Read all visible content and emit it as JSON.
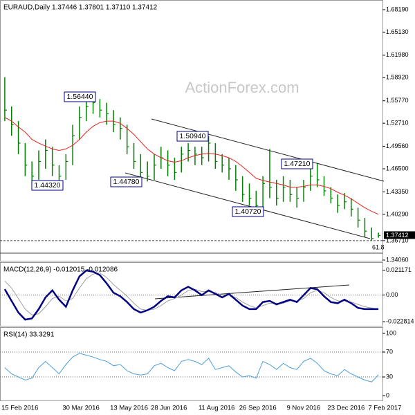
{
  "chart_data": [
    {
      "type": "ohlc",
      "title": "EURAUD,Daily 1.37446 1.37801 1.37110 1.37412",
      "watermark": "ActionForex.com",
      "categories": [
        "15 Feb 2016",
        null,
        null,
        null,
        null,
        null,
        null,
        null,
        null,
        "30 Mar 2016",
        null,
        null,
        null,
        null,
        null,
        null,
        "13 May 2016",
        null,
        null,
        null,
        null,
        null,
        "28 Jun 2016",
        null,
        null,
        null,
        null,
        null,
        null,
        "11 Aug 2016",
        null,
        null,
        null,
        null,
        null,
        "26 Sep 2016",
        null,
        null,
        null,
        null,
        null,
        null,
        "9 Nov 2016",
        null,
        null,
        null,
        null,
        null,
        "23 Dec 2016",
        null,
        null,
        null,
        null,
        null,
        "7 Feb 2017",
        null
      ],
      "series": [
        {
          "name": "high",
          "color": "#008000",
          "values": [
            1.59,
            1.55,
            1.53,
            1.5,
            1.475,
            1.49,
            1.505,
            1.495,
            1.47,
            1.485,
            1.525,
            1.55,
            1.56,
            1.5644,
            1.56,
            1.555,
            1.545,
            1.535,
            1.525,
            1.5,
            1.485,
            1.475,
            1.485,
            1.495,
            1.49,
            1.48,
            1.495,
            1.5,
            1.495,
            1.495,
            1.5094,
            1.5,
            1.485,
            1.48,
            1.47,
            1.455,
            1.445,
            1.435,
            1.455,
            1.492,
            1.45,
            1.455,
            1.45,
            1.44,
            1.45,
            1.465,
            1.4721,
            1.455,
            1.44,
            1.43,
            1.432,
            1.425,
            1.412,
            1.398,
            1.385,
            1.37801
          ]
        },
        {
          "name": "low",
          "color": "#008000",
          "values": [
            1.53,
            1.51,
            1.485,
            1.455,
            1.4432,
            1.45,
            1.465,
            1.455,
            1.445,
            1.45,
            1.47,
            1.505,
            1.53,
            1.54,
            1.535,
            1.525,
            1.515,
            1.505,
            1.485,
            1.465,
            1.45,
            1.4478,
            1.45,
            1.465,
            1.455,
            1.45,
            1.46,
            1.475,
            1.47,
            1.47,
            1.475,
            1.465,
            1.46,
            1.45,
            1.435,
            1.42,
            1.415,
            1.4072,
            1.41,
            1.425,
            1.415,
            1.42,
            1.42,
            1.412,
            1.42,
            1.435,
            1.44,
            1.428,
            1.418,
            1.405,
            1.41,
            1.4,
            1.385,
            1.372,
            1.3671,
            1.3711
          ]
        },
        {
          "name": "close",
          "color": "#008000",
          "values": [
            1.545,
            1.525,
            1.5,
            1.47,
            1.455,
            1.475,
            1.49,
            1.47,
            1.455,
            1.475,
            1.51,
            1.535,
            1.55,
            1.555,
            1.545,
            1.54,
            1.525,
            1.52,
            1.495,
            1.475,
            1.46,
            1.455,
            1.47,
            1.48,
            1.47,
            1.46,
            1.485,
            1.49,
            1.485,
            1.48,
            1.5,
            1.475,
            1.47,
            1.465,
            1.45,
            1.43,
            1.425,
            1.415,
            1.445,
            1.44,
            1.425,
            1.44,
            1.43,
            1.425,
            1.44,
            1.455,
            1.45,
            1.435,
            1.425,
            1.415,
            1.42,
            1.41,
            1.395,
            1.38,
            1.37,
            1.37412
          ]
        },
        {
          "name": "ma",
          "color": "#e8201c",
          "values": [
            1.535,
            1.53,
            1.522,
            1.515,
            1.505,
            1.5,
            1.496,
            1.492,
            1.49,
            1.492,
            1.497,
            1.505,
            1.515,
            1.523,
            1.528,
            1.53,
            1.53,
            1.527,
            1.52,
            1.512,
            1.502,
            1.492,
            1.485,
            1.48,
            1.476,
            1.474,
            1.476,
            1.48,
            1.483,
            1.485,
            1.486,
            1.485,
            1.483,
            1.48,
            1.475,
            1.468,
            1.46,
            1.452,
            1.449,
            1.447,
            1.445,
            1.443,
            1.44,
            1.44,
            1.441,
            1.443,
            1.443,
            1.441,
            1.438,
            1.433,
            1.429,
            1.424,
            1.418,
            1.412,
            1.407,
            1.403
          ]
        }
      ],
      "annotations": [
        "1.56440",
        "1.44320",
        "1.44780",
        "1.50940",
        "1.40720",
        "1.47210"
      ],
      "fib_label": "61.8",
      "ylim": [
        1.3406,
        1.6913
      ],
      "yticks": [
        {
          "value": 1.6819,
          "label": "1.68190"
        },
        {
          "value": 1.6513,
          "label": "1.65130"
        },
        {
          "value": 1.6198,
          "label": "1.61980"
        },
        {
          "value": 1.5892,
          "label": "1.58920"
        },
        {
          "value": 1.5577,
          "label": "1.55770"
        },
        {
          "value": 1.5271,
          "label": "1.52710"
        },
        {
          "value": 1.4956,
          "label": "1.49560"
        },
        {
          "value": 1.465,
          "label": "1.46500"
        },
        {
          "value": 1.4335,
          "label": "1.43350"
        },
        {
          "value": 1.4029,
          "label": "1.40290"
        },
        {
          "value": 1.3671,
          "label": "1.36710"
        },
        {
          "value": 1.3406,
          "label": "1.34060"
        }
      ],
      "last_label": {
        "value": 1.37412,
        "label": "1.37412"
      }
    },
    {
      "type": "line",
      "title": "MACD(12,26,9) -0.012015 -0.012086",
      "series": [
        {
          "name": "macd",
          "color": "#000080",
          "width": 2.5,
          "values": [
            0.005,
            -0.005,
            -0.015,
            -0.021,
            -0.02,
            -0.012,
            -0.002,
            0.004,
            -0.004,
            -0.01,
            0.004,
            0.016,
            0.021,
            0.02,
            0.017,
            0.01,
            0.002,
            -0.001,
            -0.006,
            -0.012,
            -0.015,
            -0.013,
            -0.01,
            -0.005,
            -0.001,
            -0.002,
            0.004,
            0.007,
            0.004,
            0.0,
            0.004,
            0.001,
            -0.002,
            0.001,
            -0.004,
            -0.009,
            -0.012,
            -0.012,
            -0.006,
            -0.005,
            -0.008,
            -0.006,
            -0.004,
            -0.006,
            0.0,
            0.006,
            0.005,
            -0.001,
            -0.006,
            -0.007,
            -0.004,
            -0.007,
            -0.011,
            -0.012,
            -0.012,
            -0.012015
          ]
        },
        {
          "name": "signal",
          "color": "#a0a0a0",
          "width": 1,
          "values": [
            0.012,
            0.006,
            -0.003,
            -0.012,
            -0.017,
            -0.016,
            -0.01,
            -0.003,
            -0.001,
            -0.005,
            -0.003,
            0.006,
            0.014,
            0.018,
            0.019,
            0.015,
            0.009,
            0.004,
            -0.001,
            -0.007,
            -0.012,
            -0.013,
            -0.012,
            -0.009,
            -0.005,
            -0.003,
            0.0,
            0.004,
            0.005,
            0.003,
            0.003,
            0.002,
            0.0,
            0.0,
            -0.002,
            -0.006,
            -0.009,
            -0.011,
            -0.009,
            -0.007,
            -0.007,
            -0.007,
            -0.005,
            -0.005,
            -0.003,
            0.002,
            0.004,
            0.002,
            -0.002,
            -0.005,
            -0.005,
            -0.006,
            -0.008,
            -0.01,
            -0.011,
            -0.012086
          ]
        }
      ],
      "ylim": [
        -0.0257,
        0.02638
      ],
      "yticks": [
        0.021171,
        {
          "value": 0,
          "label": "0.00"
        },
        -0.022814
      ],
      "ref_lines": [
        0
      ]
    },
    {
      "type": "line",
      "title": "RSI(14) 33.3291",
      "series": [
        {
          "name": "rsi",
          "color": "#4a9fd8",
          "width": 1,
          "values": [
            45,
            35,
            30,
            25,
            28,
            45,
            55,
            45,
            35,
            50,
            62,
            68,
            65,
            62,
            58,
            55,
            48,
            50,
            40,
            35,
            33,
            35,
            48,
            52,
            45,
            40,
            55,
            58,
            55,
            50,
            60,
            42,
            45,
            48,
            38,
            30,
            32,
            28,
            55,
            50,
            42,
            52,
            45,
            42,
            55,
            60,
            52,
            40,
            35,
            32,
            42,
            35,
            30,
            25,
            22,
            33.3291
          ]
        }
      ],
      "ylim": [
        -6.7,
        106.7
      ],
      "yticks": [
        100,
        70,
        30,
        0
      ],
      "ref_lines": [
        70,
        30
      ]
    }
  ]
}
